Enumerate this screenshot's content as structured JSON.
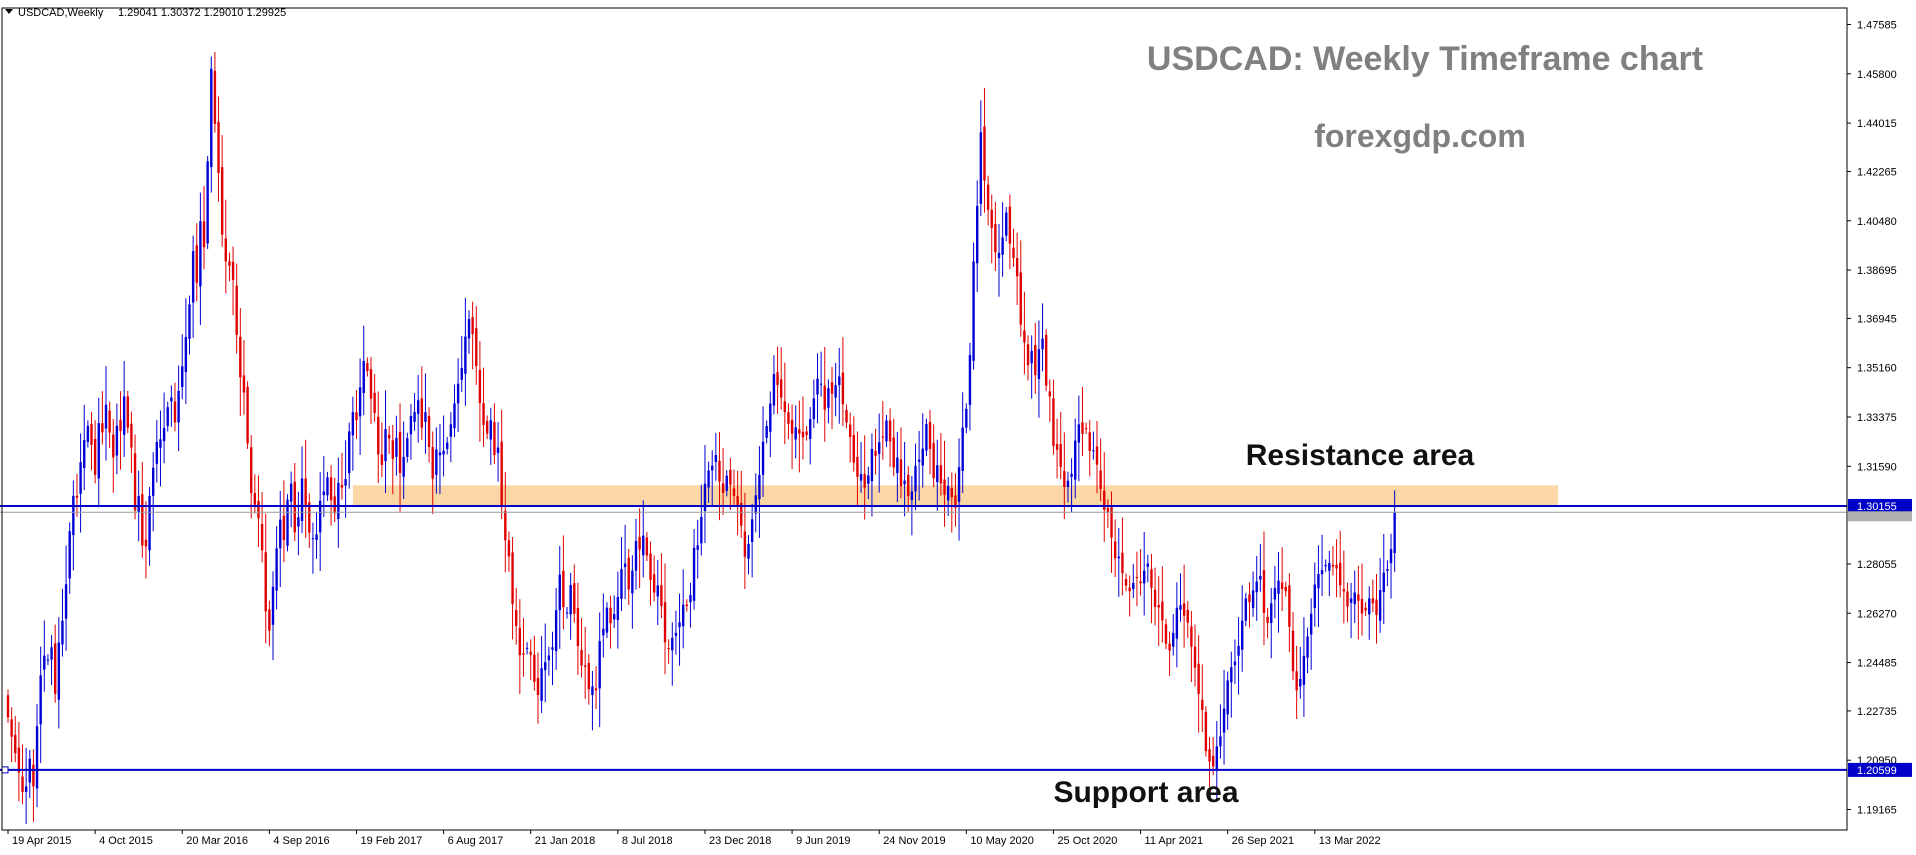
{
  "header": {
    "symbol": "USDCAD,Weekly",
    "ohlc": "1.29041 1.30372 1.29010 1.29925"
  },
  "annotations": {
    "title": "USDCAD: Weekly Timeframe chart",
    "website": "forexgdp.com",
    "resistance_label": "Resistance area",
    "support_label": "Support area"
  },
  "levels": {
    "resistance_line": "1.30155",
    "resistance_line_value": 1.30155,
    "support_line": "1.20599",
    "support_line_value": 1.20599,
    "bid_line": "1.29925",
    "bid_line_value": 1.29925,
    "resistance_zone": [
      1.3016,
      1.309
    ]
  },
  "colors": {
    "bull": "#0000d6",
    "bear": "#e00000",
    "level_line": "#0000c8",
    "zone": "#fbd7a5",
    "annotation_gray": "#808080",
    "annotation_black": "#111111"
  },
  "chart_data": {
    "type": "candlestick",
    "instrument": "USDCAD",
    "timeframe": "Weekly",
    "title": "USDCAD: Weekly Timeframe chart",
    "ylim": [
      1.1871,
      1.4817
    ],
    "y_ticks": [
      "1.47585",
      "1.45800",
      "1.44015",
      "1.42265",
      "1.40480",
      "1.38695",
      "1.36945",
      "1.35160",
      "1.33375",
      "1.31590",
      "1.28055",
      "1.26270",
      "1.24485",
      "1.22735",
      "1.20950",
      "1.19165"
    ],
    "y_tick_values": [
      1.47585,
      1.458,
      1.44015,
      1.42265,
      1.4048,
      1.38695,
      1.36945,
      1.3516,
      1.33375,
      1.3159,
      1.28055,
      1.2627,
      1.24485,
      1.22735,
      1.2095,
      1.19165
    ],
    "x_ticks": [
      "19 Apr 2015",
      "4 Oct 2015",
      "20 Mar 2016",
      "4 Sep 2016",
      "19 Feb 2017",
      "6 Aug 2017",
      "21 Jan 2018",
      "8 Jul 2018",
      "23 Dec 2018",
      "9 Jun 2019",
      "24 Nov 2019",
      "10 May 2020",
      "25 Oct 2020",
      "11 Apr 2021",
      "26 Sep 2021",
      "13 Mar 2022"
    ],
    "x_tick_index": [
      0,
      24,
      48,
      72,
      96,
      120,
      144,
      168,
      192,
      216,
      240,
      264,
      288,
      312,
      336,
      360
    ],
    "grid": false,
    "closes": [
      1.225,
      1.218,
      1.212,
      1.205,
      1.198,
      1.2,
      1.21,
      1.2,
      1.2218,
      1.2402,
      1.2473,
      1.2459,
      1.2504,
      1.2335,
      1.2521,
      1.26,
      1.2732,
      1.2924,
      1.3052,
      1.3045,
      1.3174,
      1.3254,
      1.3305,
      1.3237,
      1.3129,
      1.3315,
      1.3282,
      1.3382,
      1.3281,
      1.3191,
      1.3306,
      1.3287,
      1.3412,
      1.3299,
      1.3227,
      1.2999,
      1.3051,
      1.2872,
      1.2869,
      1.3052,
      1.3154,
      1.3247,
      1.3257,
      1.3298,
      1.3373,
      1.3408,
      1.3318,
      1.3432,
      1.3521,
      1.3627,
      1.3745,
      1.3938,
      1.3824,
      1.4046,
      1.3952,
      1.4263,
      1.4598,
      1.4399,
      1.4221,
      1.3998,
      1.3901,
      1.3885,
      1.3834,
      1.3635,
      1.3481,
      1.3426,
      1.3242,
      1.3062,
      1.302,
      1.2971,
      1.2855,
      1.2634,
      1.2564,
      1.2723,
      1.2862,
      1.2966,
      1.2892,
      1.3038,
      1.3096,
      1.292,
      1.2975,
      1.3115,
      1.3015,
      1.2919,
      1.2899,
      1.2913,
      1.3034,
      1.3068,
      1.3119,
      1.3036,
      1.2989,
      1.3099,
      1.3082,
      1.3113,
      1.3285,
      1.3355,
      1.3326,
      1.3445,
      1.354,
      1.3504,
      1.3404,
      1.3352,
      1.3202,
      1.3164,
      1.3294,
      1.326,
      1.3186,
      1.3262,
      1.3135,
      1.3193,
      1.3261,
      1.3341,
      1.3356,
      1.3398,
      1.3299,
      1.3355,
      1.3229,
      1.3114,
      1.322,
      1.3209,
      1.3215,
      1.3245,
      1.3311,
      1.3387,
      1.3458,
      1.3515,
      1.3629,
      1.3692,
      1.3638,
      1.3522,
      1.3388,
      1.3309,
      1.3277,
      1.3326,
      1.32,
      1.3227,
      1.3012,
      1.2891,
      1.2833,
      1.266,
      1.2581,
      1.2475,
      1.2477,
      1.2502,
      1.2477,
      1.2379,
      1.2331,
      1.2428,
      1.245,
      1.2474,
      1.2504,
      1.2638,
      1.2767,
      1.2649,
      1.263,
      1.2729,
      1.2625,
      1.2508,
      1.2438,
      1.2433,
      1.2352,
      1.2362,
      1.2348,
      1.2526,
      1.2571,
      1.2647,
      1.2591,
      1.2624,
      1.2686,
      1.2787,
      1.2807,
      1.2713,
      1.2781,
      1.2889,
      1.2858,
      1.2908,
      1.2836,
      1.2747,
      1.2702,
      1.2728,
      1.2653,
      1.2522,
      1.25,
      1.2538,
      1.2556,
      1.2594,
      1.2658,
      1.2653,
      1.2693,
      1.2864,
      1.2873,
      1.2976,
      1.3096,
      1.3144,
      1.3161,
      1.32,
      1.3104,
      1.3063,
      1.3125,
      1.3093,
      1.3051,
      1.3013,
      1.2944,
      1.2831,
      1.2878,
      1.2967,
      1.3054,
      1.3128,
      1.3248,
      1.3305,
      1.3386,
      1.3493,
      1.3453,
      1.3408,
      1.3355,
      1.3313,
      1.3277,
      1.33,
      1.3277,
      1.3264,
      1.3272,
      1.333,
      1.3405,
      1.3476,
      1.3458,
      1.3364,
      1.3442,
      1.3422,
      1.3453,
      1.3484,
      1.3384,
      1.3317,
      1.3265,
      1.3172,
      1.3121,
      1.3131,
      1.3082,
      1.3126,
      1.3222,
      1.3197,
      1.3246,
      1.3263,
      1.3325,
      1.3249,
      1.3155,
      1.3191,
      1.3087,
      1.3107,
      1.3051,
      1.3068,
      1.3161,
      1.3183,
      1.3223,
      1.3312,
      1.3222,
      1.3116,
      1.3163,
      1.3097,
      1.3056,
      1.3088,
      1.3047,
      1.3009,
      1.3156,
      1.3299,
      1.3367,
      1.3562,
      1.3901,
      1.4102,
      1.4368,
      1.4193,
      1.4087,
      1.4022,
      1.3934,
      1.3932,
      1.3987,
      1.4078,
      1.3965,
      1.3913,
      1.3847,
      1.3672,
      1.3608,
      1.3525,
      1.3577,
      1.3489,
      1.3583,
      1.3621,
      1.3451,
      1.3412,
      1.3233,
      1.3219,
      1.3156,
      1.3084,
      1.3107,
      1.3132,
      1.3252,
      1.3311,
      1.3276,
      1.3296,
      1.3215,
      1.3217,
      1.3165,
      1.3077,
      1.3001,
      1.2991,
      1.2901,
      1.2826,
      1.2832,
      1.2772,
      1.2727,
      1.2707,
      1.2737,
      1.2757,
      1.2735,
      1.2781,
      1.2807,
      1.2719,
      1.265,
      1.2648,
      1.2601,
      1.2517,
      1.2492,
      1.2556,
      1.2647,
      1.2656,
      1.2618,
      1.2593,
      1.2506,
      1.243,
      1.2335,
      1.2277,
      1.2128,
      1.209,
      1.2073,
      1.2145,
      1.2181,
      1.2282,
      1.2384,
      1.2432,
      1.2452,
      1.2509,
      1.26,
      1.2681,
      1.2667,
      1.271,
      1.2742,
      1.2762,
      1.2628,
      1.2592,
      1.2663,
      1.2718,
      1.2745,
      1.2715,
      1.2707,
      1.2578,
      1.2417,
      1.2348,
      1.2389,
      1.2473,
      1.2543,
      1.2625,
      1.2731,
      1.2769,
      1.2783,
      1.2802,
      1.2809,
      1.2796,
      1.2789,
      1.2728,
      1.2706,
      1.2651,
      1.2681,
      1.2702,
      1.2672,
      1.2626,
      1.2637,
      1.2681,
      1.2663,
      1.2621,
      1.2711,
      1.2774,
      1.2787,
      1.2859,
      1.2992
    ]
  }
}
